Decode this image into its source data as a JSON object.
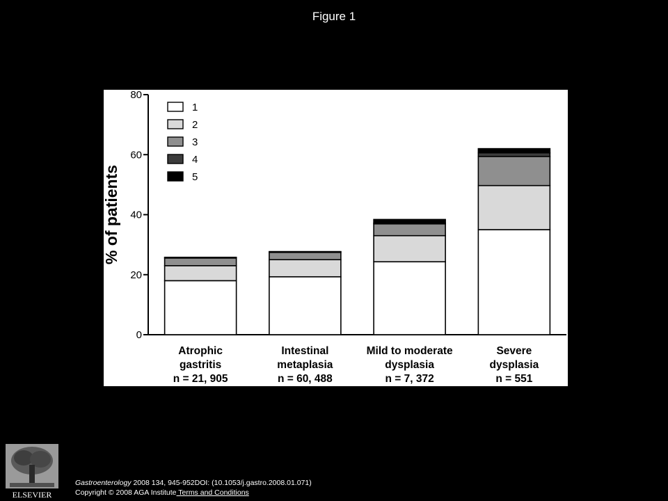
{
  "figure_title": "Figure 1",
  "footer": {
    "journal": "Gastroenterology",
    "citation": " 2008 134, 945-952DOI: (10.1053/j.gastro.2008.01.071)",
    "copyright": "Copyright © 2008 AGA Institute",
    "terms_link": " Terms and Conditions"
  },
  "logo": {
    "text": "ELSEVIER",
    "icon": "elsevier-tree-icon"
  },
  "chart_data": {
    "type": "bar",
    "stacked": true,
    "title": "",
    "xlabel": "",
    "ylabel": "% of patients",
    "ylim": [
      0,
      80
    ],
    "yticks": [
      0,
      20,
      40,
      60,
      80
    ],
    "legend_position": "top-left",
    "categories": [
      [
        "Atrophic",
        "gastritis",
        "n = 21, 905"
      ],
      [
        "Intestinal",
        "metaplasia",
        "n = 60, 488"
      ],
      [
        "Mild to moderate",
        "dysplasia",
        "n = 7, 372"
      ],
      [
        "Severe",
        "dysplasia",
        "n = 551"
      ]
    ],
    "series": [
      {
        "name": "1",
        "color": "#ffffff",
        "values": [
          18.0,
          19.3,
          24.3,
          35.0
        ]
      },
      {
        "name": "2",
        "color": "#d9d9d9",
        "values": [
          5.0,
          5.7,
          8.7,
          14.7
        ]
      },
      {
        "name": "3",
        "color": "#8f8f8f",
        "values": [
          2.7,
          2.6,
          4.0,
          9.7
        ]
      },
      {
        "name": "4",
        "color": "#3c3c3c",
        "values": [
          0.1,
          0.1,
          0.2,
          1.2
        ]
      },
      {
        "name": "5",
        "color": "#000000",
        "values": [
          0.0,
          0.0,
          1.2,
          1.4
        ]
      }
    ]
  }
}
